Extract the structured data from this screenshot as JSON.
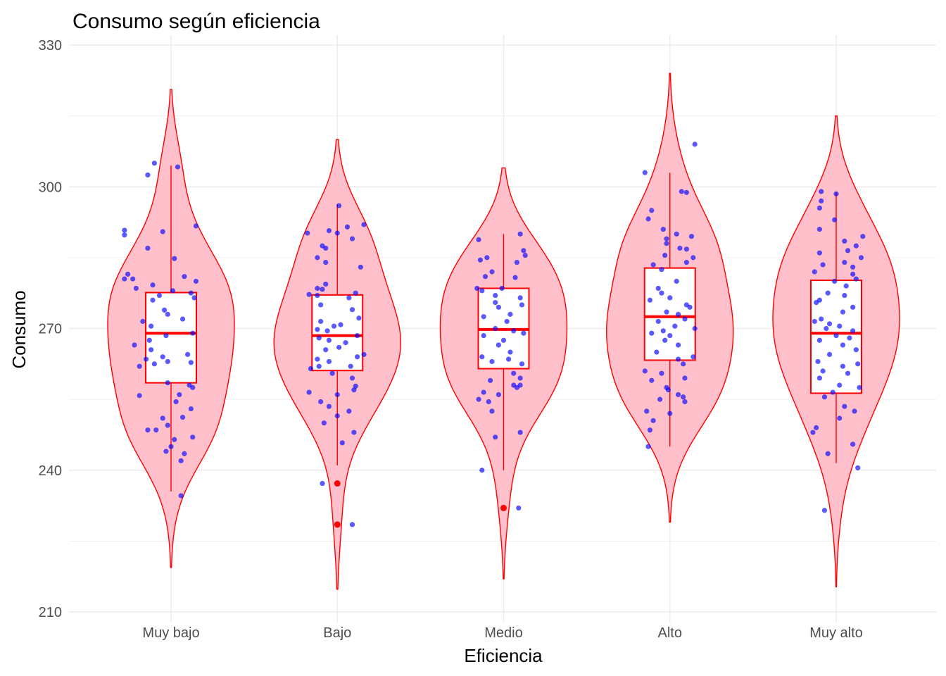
{
  "chart_data": {
    "type": "violin",
    "title": "Consumo según eficiencia",
    "xlabel": "Eficiencia",
    "ylabel": "Consumo",
    "ylim": [
      210,
      330
    ],
    "yticks": [
      210,
      240,
      270,
      300,
      330
    ],
    "grid": true,
    "legend": "none",
    "colors": {
      "violin_fill": "#ffc0cb",
      "violin_line": "#ff0000",
      "box_fill": "#ffffff",
      "box_line": "#ff0000",
      "outlier": "#ff0000",
      "points": "#0000ff"
    },
    "categories": [
      "Muy bajo",
      "Bajo",
      "Medio",
      "Alto",
      "Muy alto"
    ],
    "groups": [
      {
        "name": "Muy bajo",
        "violin_range": [
          219.4,
          320.6
        ],
        "box": {
          "whisker_low": 235.5,
          "q1": 258.5,
          "median": 269.0,
          "q3": 277.6,
          "whisker_high": 304.5
        },
        "outliers": [],
        "points": [
          [
            0.04,
            304.2
          ],
          [
            -0.1,
            305.0
          ],
          [
            -0.14,
            302.5
          ],
          [
            0.15,
            291.7
          ],
          [
            -0.28,
            290.8
          ],
          [
            -0.28,
            289.8
          ],
          [
            -0.05,
            290.5
          ],
          [
            -0.14,
            287.0
          ],
          [
            -0.26,
            281.5
          ],
          [
            -0.28,
            280.5
          ],
          [
            -0.23,
            280.5
          ],
          [
            0.08,
            281.0
          ],
          [
            -0.11,
            279.2
          ],
          [
            0.02,
            284.8
          ],
          [
            0.15,
            280.0
          ],
          [
            -0.21,
            278.5
          ],
          [
            0.12,
            277.5
          ],
          [
            0.01,
            278.0
          ],
          [
            -0.07,
            277.0
          ],
          [
            -0.11,
            276.0
          ],
          [
            0.14,
            276.5
          ],
          [
            -0.04,
            273.9
          ],
          [
            -0.02,
            273.0
          ],
          [
            0.07,
            272.0
          ],
          [
            -0.17,
            271.5
          ],
          [
            -0.12,
            270.5
          ],
          [
            -0.03,
            268.5
          ],
          [
            0.13,
            269.0
          ],
          [
            -0.13,
            267.5
          ],
          [
            -0.22,
            266.5
          ],
          [
            -0.12,
            265.5
          ],
          [
            -0.05,
            264.0
          ],
          [
            0.1,
            264.5
          ],
          [
            -0.15,
            263.5
          ],
          [
            -0.02,
            263.0
          ],
          [
            -0.19,
            262.0
          ],
          [
            -0.1,
            262.5
          ],
          [
            0.12,
            262.8
          ],
          [
            0.11,
            258.0
          ],
          [
            -0.02,
            258.5
          ],
          [
            0.13,
            257.5
          ],
          [
            0.05,
            256.0
          ],
          [
            -0.19,
            255.8
          ],
          [
            0.03,
            254.5
          ],
          [
            0.12,
            253.0
          ],
          [
            -0.05,
            251.0
          ],
          [
            0.07,
            251.2
          ],
          [
            -0.02,
            249.5
          ],
          [
            -0.09,
            248.5
          ],
          [
            -0.14,
            248.5
          ],
          [
            0.13,
            247.0
          ],
          [
            0.02,
            246.5
          ],
          [
            0.0,
            245.0
          ],
          [
            -0.03,
            244.0
          ],
          [
            0.08,
            243.5
          ],
          [
            0.06,
            242.0
          ],
          [
            0.06,
            234.6
          ]
        ]
      },
      {
        "name": "Bajo",
        "violin_range": [
          214.8,
          310.0
        ],
        "box": {
          "whisker_low": 241.0,
          "q1": 261.1,
          "median": 268.5,
          "q3": 277.1,
          "whisker_high": 296.3
        },
        "outliers": [
          237.2,
          228.5
        ],
        "points": [
          [
            0.01,
            296.0
          ],
          [
            0.16,
            292.0
          ],
          [
            0.06,
            291.5
          ],
          [
            -0.05,
            290.7
          ],
          [
            0.0,
            290.2
          ],
          [
            0.09,
            289.0
          ],
          [
            -0.18,
            290.2
          ],
          [
            -0.07,
            287.0
          ],
          [
            -0.09,
            287.5
          ],
          [
            -0.12,
            285.0
          ],
          [
            -0.07,
            284.0
          ],
          [
            0.14,
            283.0
          ],
          [
            -0.07,
            279.4
          ],
          [
            -0.09,
            278.3
          ],
          [
            -0.12,
            278.5
          ],
          [
            -0.17,
            277.2
          ],
          [
            0.11,
            277.5
          ],
          [
            -0.12,
            277.0
          ],
          [
            0.07,
            276.5
          ],
          [
            -0.1,
            275.0
          ],
          [
            0.09,
            274.0
          ],
          [
            0.13,
            272.2
          ],
          [
            -0.1,
            271.5
          ],
          [
            0.02,
            270.8
          ],
          [
            -0.02,
            270.5
          ],
          [
            -0.12,
            269.8
          ],
          [
            -0.06,
            269.5
          ],
          [
            0.12,
            268.5
          ],
          [
            -0.11,
            268.0
          ],
          [
            -0.05,
            267.5
          ],
          [
            0.05,
            267.0
          ],
          [
            0.01,
            266.0
          ],
          [
            -0.07,
            265.5
          ],
          [
            0.16,
            264.5
          ],
          [
            0.12,
            264.0
          ],
          [
            -0.12,
            263.5
          ],
          [
            -0.05,
            263.0
          ],
          [
            0.08,
            262.0
          ],
          [
            -0.11,
            262.0
          ],
          [
            -0.16,
            261.5
          ],
          [
            -0.03,
            260.5
          ],
          [
            0.09,
            259.5
          ],
          [
            0.11,
            257.8
          ],
          [
            -0.17,
            256.5
          ],
          [
            0.0,
            256.0
          ],
          [
            0.1,
            257.0
          ],
          [
            -0.1,
            254.5
          ],
          [
            -0.05,
            253.5
          ],
          [
            0.07,
            252.5
          ],
          [
            0.0,
            251.5
          ],
          [
            -0.08,
            250.0
          ],
          [
            0.1,
            248.0
          ],
          [
            0.03,
            245.8
          ],
          [
            -0.09,
            237.2
          ],
          [
            0.09,
            228.5
          ]
        ]
      },
      {
        "name": "Medio",
        "violin_range": [
          217.0,
          304.0
        ],
        "box": {
          "whisker_low": 240.0,
          "q1": 261.5,
          "median": 269.8,
          "q3": 278.5,
          "whisker_high": 290.0
        },
        "outliers": [
          232.0
        ],
        "points": [
          [
            0.1,
            290.0
          ],
          [
            -0.15,
            288.8
          ],
          [
            0.12,
            286.5
          ],
          [
            0.13,
            285.5
          ],
          [
            0.08,
            284.0
          ],
          [
            -0.1,
            285.0
          ],
          [
            -0.14,
            284.5
          ],
          [
            -0.07,
            282.0
          ],
          [
            -0.11,
            281.0
          ],
          [
            0.07,
            280.8
          ],
          [
            -0.16,
            278.5
          ],
          [
            -0.13,
            278.0
          ],
          [
            -0.05,
            277.0
          ],
          [
            -0.01,
            278.5
          ],
          [
            0.1,
            276.5
          ],
          [
            -0.05,
            275.5
          ],
          [
            -0.03,
            274.5
          ],
          [
            0.11,
            275.0
          ],
          [
            0.04,
            273.0
          ],
          [
            -0.12,
            272.5
          ],
          [
            0.02,
            271.5
          ],
          [
            -0.05,
            270.0
          ],
          [
            0.06,
            269.5
          ],
          [
            0.12,
            269.0
          ],
          [
            -0.12,
            268.5
          ],
          [
            0.0,
            267.5
          ],
          [
            -0.03,
            266.5
          ],
          [
            0.04,
            265.0
          ],
          [
            -0.13,
            264.0
          ],
          [
            0.03,
            263.5
          ],
          [
            -0.07,
            263.0
          ],
          [
            0.11,
            262.5
          ],
          [
            0.06,
            260.5
          ],
          [
            0.1,
            259.5
          ],
          [
            -0.08,
            259.0
          ],
          [
            0.06,
            258.0
          ],
          [
            0.1,
            258.0
          ],
          [
            0.08,
            257.5
          ],
          [
            -0.12,
            256.5
          ],
          [
            -0.03,
            256.0
          ],
          [
            -0.15,
            255.0
          ],
          [
            -0.09,
            254.5
          ],
          [
            -0.07,
            252.5
          ],
          [
            0.1,
            248.0
          ],
          [
            -0.05,
            247.0
          ],
          [
            -0.13,
            240.0
          ],
          [
            0.09,
            232.0
          ]
        ]
      },
      {
        "name": "Alto",
        "violin_range": [
          229.0,
          324.0
        ],
        "box": {
          "whisker_low": 245.0,
          "q1": 263.3,
          "median": 272.5,
          "q3": 282.8,
          "whisker_high": 303.0
        },
        "outliers": [],
        "points": [
          [
            0.15,
            309.0
          ],
          [
            -0.15,
            303.0
          ],
          [
            0.07,
            299.0
          ],
          [
            0.1,
            298.8
          ],
          [
            -0.11,
            295.0
          ],
          [
            -0.13,
            293.2
          ],
          [
            -0.02,
            289.0
          ],
          [
            0.13,
            289.5
          ],
          [
            -0.04,
            291.0
          ],
          [
            0.04,
            290.0
          ],
          [
            -0.02,
            288.0
          ],
          [
            0.06,
            287.0
          ],
          [
            0.1,
            286.8
          ],
          [
            -0.03,
            285.5
          ],
          [
            0.14,
            285.0
          ],
          [
            0.1,
            284.0
          ],
          [
            -0.1,
            283.5
          ],
          [
            -0.05,
            282.5
          ],
          [
            0.04,
            280.0
          ],
          [
            -0.07,
            278.5
          ],
          [
            -0.05,
            277.5
          ],
          [
            0.0,
            276.5
          ],
          [
            -0.12,
            276.0
          ],
          [
            0.1,
            275.0
          ],
          [
            0.12,
            274.5
          ],
          [
            -0.02,
            273.5
          ],
          [
            0.05,
            273.0
          ],
          [
            0.09,
            272.0
          ],
          [
            -0.07,
            271.5
          ],
          [
            0.03,
            270.5
          ],
          [
            0.15,
            270.0
          ],
          [
            -0.04,
            269.5
          ],
          [
            -0.11,
            269.0
          ],
          [
            0.0,
            268.5
          ],
          [
            -0.03,
            267.5
          ],
          [
            0.05,
            266.5
          ],
          [
            -0.08,
            265.0
          ],
          [
            0.14,
            264.0
          ],
          [
            0.05,
            263.5
          ],
          [
            0.08,
            262.5
          ],
          [
            -0.15,
            261.0
          ],
          [
            -0.05,
            260.5
          ],
          [
            0.09,
            259.5
          ],
          [
            -0.11,
            259.0
          ],
          [
            -0.02,
            257.5
          ],
          [
            -0.01,
            257.0
          ],
          [
            0.05,
            256.0
          ],
          [
            0.08,
            255.5
          ],
          [
            -0.06,
            255.0
          ],
          [
            0.09,
            254.5
          ],
          [
            -0.14,
            252.5
          ],
          [
            0.0,
            252.0
          ],
          [
            -0.1,
            250.5
          ],
          [
            -0.12,
            248.5
          ],
          [
            -0.13,
            245.0
          ]
        ]
      },
      {
        "name": "Muy alto",
        "violin_range": [
          215.3,
          315.0
        ],
        "box": {
          "whisker_low": 241.5,
          "q1": 256.3,
          "median": 269.0,
          "q3": 280.2,
          "whisker_high": 298.8
        },
        "outliers": [],
        "points": [
          [
            -0.09,
            299.0
          ],
          [
            0.0,
            298.5
          ],
          [
            -0.09,
            297.0
          ],
          [
            -0.1,
            295.5
          ],
          [
            -0.01,
            293.0
          ],
          [
            -0.1,
            291.0
          ],
          [
            0.16,
            289.5
          ],
          [
            0.05,
            288.5
          ],
          [
            0.12,
            287.5
          ],
          [
            -0.1,
            286.0
          ],
          [
            0.07,
            286.5
          ],
          [
            0.15,
            285.0
          ],
          [
            0.05,
            284.0
          ],
          [
            -0.08,
            283.5
          ],
          [
            0.1,
            283.0
          ],
          [
            -0.13,
            282.0
          ],
          [
            0.1,
            281.5
          ],
          [
            0.12,
            280.5
          ],
          [
            -0.01,
            280.0
          ],
          [
            0.06,
            279.0
          ],
          [
            -0.05,
            277.5
          ],
          [
            0.05,
            277.0
          ],
          [
            -0.1,
            276.0
          ],
          [
            -0.12,
            275.5
          ],
          [
            0.1,
            274.5
          ],
          [
            0.04,
            273.5
          ],
          [
            -0.09,
            272.0
          ],
          [
            -0.13,
            271.5
          ],
          [
            -0.04,
            271.0
          ],
          [
            0.02,
            270.5
          ],
          [
            -0.06,
            270.0
          ],
          [
            0.1,
            269.5
          ],
          [
            0.0,
            268.5
          ],
          [
            0.08,
            268.0
          ],
          [
            -0.1,
            267.5
          ],
          [
            0.04,
            266.5
          ],
          [
            0.12,
            265.5
          ],
          [
            -0.04,
            264.5
          ],
          [
            -0.11,
            263.0
          ],
          [
            0.13,
            262.5
          ],
          [
            0.04,
            262.0
          ],
          [
            -0.08,
            261.0
          ],
          [
            0.07,
            260.5
          ],
          [
            -0.1,
            259.5
          ],
          [
            0.02,
            258.0
          ],
          [
            0.14,
            257.5
          ],
          [
            -0.02,
            256.5
          ],
          [
            -0.07,
            255.5
          ],
          [
            0.05,
            253.5
          ],
          [
            0.11,
            252.5
          ],
          [
            0.02,
            251.0
          ],
          [
            -0.12,
            249.0
          ],
          [
            -0.14,
            248.0
          ],
          [
            0.1,
            245.5
          ],
          [
            -0.05,
            243.5
          ],
          [
            0.13,
            240.5
          ],
          [
            -0.07,
            231.5
          ]
        ]
      }
    ]
  }
}
